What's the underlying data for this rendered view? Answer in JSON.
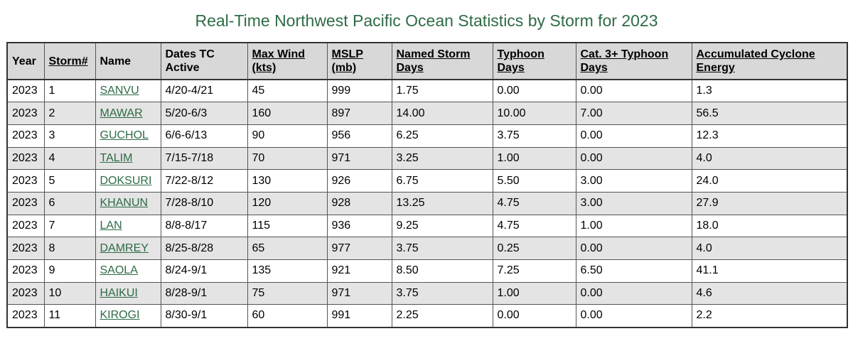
{
  "page": {
    "title": "Real-Time Northwest Pacific Ocean Statistics by Storm for 2023"
  },
  "table": {
    "headers": {
      "year": "Year",
      "storm_num": "Storm#",
      "name": "Name",
      "dates": "Dates TC Active",
      "max_wind": "Max Wind (kts)",
      "mslp": "MSLP (mb)",
      "named_days": "Named Storm Days",
      "typhoon_days": "Typhoon Days",
      "cat3_days": "Cat. 3+ Typhoon Days",
      "ace": "Accumulated Cyclone Energy"
    },
    "rows": [
      {
        "year": "2023",
        "num": "1",
        "name": "SANVU",
        "dates": "4/20-4/21",
        "wind": "45",
        "mslp": "999",
        "nsd": "1.75",
        "td": "0.00",
        "c3": "0.00",
        "ace": "1.3"
      },
      {
        "year": "2023",
        "num": "2",
        "name": "MAWAR",
        "dates": "5/20-6/3",
        "wind": "160",
        "mslp": "897",
        "nsd": "14.00",
        "td": "10.00",
        "c3": "7.00",
        "ace": "56.5"
      },
      {
        "year": "2023",
        "num": "3",
        "name": "GUCHOL",
        "dates": "6/6-6/13",
        "wind": "90",
        "mslp": "956",
        "nsd": "6.25",
        "td": "3.75",
        "c3": "0.00",
        "ace": "12.3"
      },
      {
        "year": "2023",
        "num": "4",
        "name": "TALIM",
        "dates": "7/15-7/18",
        "wind": "70",
        "mslp": "971",
        "nsd": "3.25",
        "td": "1.00",
        "c3": "0.00",
        "ace": "4.0"
      },
      {
        "year": "2023",
        "num": "5",
        "name": "DOKSURI",
        "dates": "7/22-8/12",
        "wind": "130",
        "mslp": "926",
        "nsd": "6.75",
        "td": "5.50",
        "c3": "3.00",
        "ace": "24.0"
      },
      {
        "year": "2023",
        "num": "6",
        "name": "KHANUN",
        "dates": "7/28-8/10",
        "wind": "120",
        "mslp": "928",
        "nsd": "13.25",
        "td": "4.75",
        "c3": "3.00",
        "ace": "27.9"
      },
      {
        "year": "2023",
        "num": "7",
        "name": "LAN",
        "dates": "8/8-8/17",
        "wind": "115",
        "mslp": "936",
        "nsd": "9.25",
        "td": "4.75",
        "c3": "1.00",
        "ace": "18.0"
      },
      {
        "year": "2023",
        "num": "8",
        "name": "DAMREY",
        "dates": "8/25-8/28",
        "wind": "65",
        "mslp": "977",
        "nsd": "3.75",
        "td": "0.25",
        "c3": "0.00",
        "ace": "4.0"
      },
      {
        "year": "2023",
        "num": "9",
        "name": "SAOLA",
        "dates": "8/24-9/1",
        "wind": "135",
        "mslp": "921",
        "nsd": "8.50",
        "td": "7.25",
        "c3": "6.50",
        "ace": "41.1"
      },
      {
        "year": "2023",
        "num": "10",
        "name": "HAIKUI",
        "dates": "8/28-9/1",
        "wind": "75",
        "mslp": "971",
        "nsd": "3.75",
        "td": "1.00",
        "c3": "0.00",
        "ace": "4.6"
      },
      {
        "year": "2023",
        "num": "11",
        "name": "KIROGI",
        "dates": "8/30-9/1",
        "wind": "60",
        "mslp": "991",
        "nsd": "2.25",
        "td": "0.00",
        "c3": "0.00",
        "ace": "2.2"
      }
    ]
  },
  "colors": {
    "title": "#2e6b45",
    "link": "#2e6b45",
    "header_bg": "#d8d8d8",
    "stripe_bg": "#e4e4e4"
  }
}
